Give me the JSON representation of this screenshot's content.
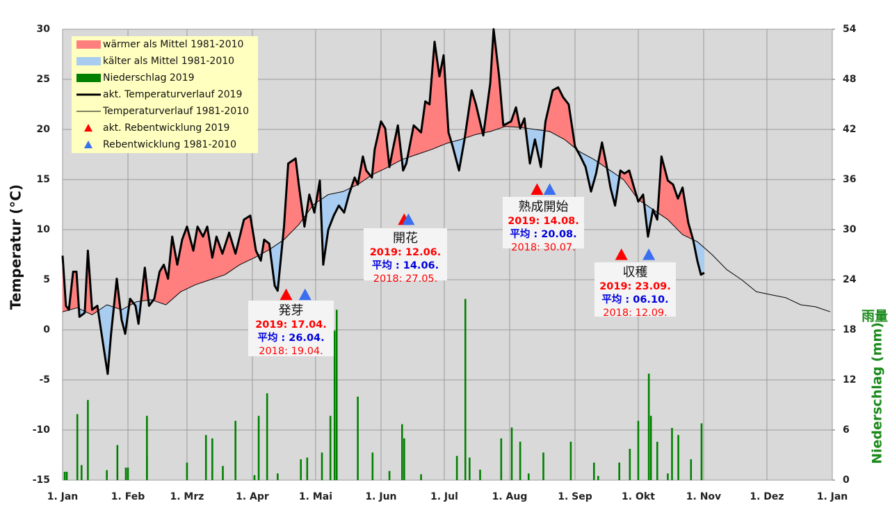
{
  "chart_data": {
    "type": "line",
    "ylabel": "Temperatur (°C)",
    "y2label": "Niederschlag (mm)",
    "y2label_extra": "雨量",
    "xlim": [
      0,
      365
    ],
    "xticks": [
      {
        "value": 0,
        "label": "1. Jan"
      },
      {
        "value": 31,
        "label": "1. Feb"
      },
      {
        "value": 59,
        "label": "1. Mrz"
      },
      {
        "value": 90,
        "label": "1. Apr"
      },
      {
        "value": 120,
        "label": "1. Mai"
      },
      {
        "value": 151,
        "label": "1. Jun"
      },
      {
        "value": 181,
        "label": "1. Jul"
      },
      {
        "value": 212,
        "label": "1. Aug"
      },
      {
        "value": 243,
        "label": "1. Sep"
      },
      {
        "value": 273,
        "label": "1. Okt"
      },
      {
        "value": 304,
        "label": "1. Nov"
      },
      {
        "value": 334,
        "label": "1. Dez"
      },
      {
        "value": 365,
        "label": "1. Jan"
      }
    ],
    "ylim": [
      -15,
      30
    ],
    "yticks": [
      -15,
      -10,
      -5,
      0,
      5,
      10,
      15,
      20,
      25,
      30
    ],
    "y2lim": [
      0,
      54
    ],
    "y2ticks": [
      0,
      6,
      12,
      18,
      24,
      30,
      36,
      42,
      48,
      54
    ],
    "grid": true,
    "fills": [
      {
        "name": "wärmer als Mittel 1981-2010",
        "color": "#ff7f7f"
      },
      {
        "name": "kälter als Mittel 1981-2010",
        "color": "#a9cdf0"
      }
    ],
    "series": [
      {
        "name": "Niederschlag 2019",
        "color": "#008000",
        "axis": "y2",
        "x": [
          1,
          2,
          7,
          9,
          12,
          21,
          26,
          30,
          31,
          40,
          40,
          59,
          68,
          71,
          76,
          82,
          91,
          93,
          97,
          102,
          113,
          116,
          123,
          127,
          129,
          130,
          140,
          147,
          155,
          161,
          162,
          170,
          187,
          191,
          193,
          198,
          208,
          213,
          217,
          221,
          228,
          241,
          252,
          254,
          264,
          269,
          273,
          278,
          279,
          282,
          287,
          289,
          292,
          298,
          303
        ],
        "values": [
          1.0,
          1.0,
          7.9,
          1.8,
          9.6,
          1.2,
          4.2,
          1.5,
          1.5,
          7.7,
          2.9,
          2.1,
          5.4,
          5.0,
          1.7,
          7.1,
          0.6,
          7.7,
          10.4,
          0.8,
          2.5,
          2.7,
          3.3,
          7.7,
          17.9,
          20.4,
          10.0,
          3.3,
          1.1,
          6.7,
          5.0,
          0.7,
          2.9,
          21.7,
          2.7,
          1.25,
          5.0,
          6.3,
          4.6,
          0.8,
          3.3,
          4.6,
          2.1,
          0.5,
          2.1,
          3.75,
          7.1,
          12.75,
          7.7,
          4.6,
          0.8,
          6.25,
          5.4,
          2.5,
          6.8
        ]
      },
      {
        "name": "akt. Temperaturverlauf 2019",
        "color": "#000000",
        "x": [
          0,
          1.6,
          3,
          5,
          6.6,
          8,
          10.5,
          12,
          14,
          16.5,
          18,
          20,
          21.4,
          23,
          25.7,
          28,
          29.7,
          32,
          34.6,
          36,
          39,
          41,
          43.5,
          46,
          48,
          50,
          52,
          54.4,
          56.7,
          59,
          62,
          64,
          66.6,
          68.6,
          71,
          73,
          75.8,
          79,
          82,
          86,
          89,
          91.7,
          94,
          95.6,
          98,
          100.6,
          102,
          105,
          107,
          110.5,
          112,
          114.7,
          117,
          119.4,
          122,
          123.6,
          126,
          128.6,
          131,
          133.5,
          135.8,
          138.5,
          140,
          142.4,
          144,
          146.7,
          148,
          151,
          153,
          155,
          156.6,
          159,
          161.5,
          163,
          166.5,
          170,
          172,
          174,
          176.4,
          178.7,
          180.7,
          183,
          185,
          188,
          190.6,
          194,
          196,
          199.5,
          202.8,
          204.4,
          207,
          209,
          212.7,
          215,
          217,
          219,
          221.6,
          224,
          226.8,
          229,
          232.4,
          235,
          237.4,
          240,
          243,
          245.6,
          248,
          250.6,
          253,
          255.8,
          257.8,
          259.8,
          262,
          264.5,
          266.4,
          268.7,
          271,
          273,
          275.3,
          277.6,
          280,
          282,
          284,
          287,
          289.5,
          291.8,
          294,
          296.7,
          299,
          301,
          302.7,
          304.3
        ],
        "values": [
          7.4,
          2.4,
          2.0,
          5.8,
          5.8,
          1.3,
          1.7,
          7.9,
          2.0,
          2.4,
          0.3,
          -2.5,
          -4.4,
          -0.4,
          5.1,
          1.0,
          -0.4,
          3.1,
          2.4,
          0.6,
          6.2,
          2.4,
          3.1,
          5.8,
          6.5,
          5.1,
          9.3,
          6.5,
          9.0,
          10.3,
          7.9,
          10.3,
          9.3,
          10.3,
          7.2,
          9.3,
          7.6,
          9.7,
          7.6,
          11.0,
          11.4,
          7.9,
          6.9,
          9.0,
          8.6,
          4.4,
          3.9,
          10.3,
          16.6,
          17.1,
          14.5,
          10.3,
          13.5,
          11.7,
          14.9,
          6.5,
          10.0,
          11.4,
          12.4,
          11.7,
          13.5,
          15.2,
          14.5,
          17.3,
          15.9,
          15.2,
          18.0,
          20.8,
          20.1,
          16.25,
          18.0,
          20.4,
          15.9,
          16.6,
          20.4,
          19.7,
          22.8,
          22.5,
          28.75,
          25.3,
          27.4,
          19.7,
          18.3,
          15.9,
          19.0,
          23.9,
          22.5,
          19.4,
          24.6,
          30.0,
          25.3,
          20.4,
          20.8,
          22.2,
          20.1,
          21.1,
          16.6,
          19.0,
          16.25,
          20.8,
          23.9,
          24.2,
          23.2,
          22.5,
          18.3,
          17.3,
          16.25,
          13.8,
          15.6,
          18.7,
          16.6,
          14.2,
          12.4,
          15.9,
          15.6,
          15.9,
          14.2,
          12.8,
          13.5,
          9.3,
          12.0,
          11.0,
          17.3,
          14.9,
          14.5,
          13.1,
          14.2,
          10.7,
          9.0,
          6.9,
          5.5,
          5.7
        ]
      },
      {
        "name": "Temperaturverlauf 1981-2010",
        "color": "#000000",
        "x": [
          0,
          7,
          14,
          21,
          28,
          35,
          42,
          49,
          56,
          63,
          70,
          77,
          84,
          91,
          98,
          105,
          112,
          119,
          126,
          133,
          140,
          147,
          154,
          161,
          168,
          175,
          182,
          189,
          196,
          203,
          210,
          217,
          224,
          231,
          238,
          245,
          252,
          259,
          266,
          273,
          280,
          287,
          294,
          301,
          308,
          315,
          322,
          329,
          336,
          343,
          350,
          357,
          364
        ],
        "values": [
          1.8,
          2.2,
          1.5,
          2.5,
          2.0,
          2.8,
          3.0,
          2.5,
          3.8,
          4.5,
          5.0,
          5.5,
          6.5,
          7.2,
          8.0,
          9.0,
          10.5,
          12.5,
          13.5,
          13.8,
          14.5,
          15.5,
          16.2,
          17.0,
          17.5,
          18.0,
          18.6,
          19.0,
          19.5,
          19.8,
          20.3,
          20.2,
          20.0,
          19.8,
          19.0,
          17.8,
          17.0,
          16.0,
          15.0,
          13.0,
          12.0,
          11.0,
          9.5,
          8.8,
          7.5,
          6.0,
          5.0,
          3.8,
          3.5,
          3.2,
          2.5,
          2.3,
          1.8
        ]
      }
    ],
    "markers": [
      {
        "name": "akt. Rebentwicklung 2019",
        "color": "#ff0000"
      },
      {
        "name": "Rebentwicklung 1981-2010",
        "color": "#3a6ff0"
      }
    ],
    "annotations": [
      {
        "title": "発芽",
        "x": [
          106,
          115
        ],
        "y": 3.5,
        "lines": [
          "2019:  17.04.",
          "平均  : 26.04.",
          "2018:  19.04."
        ]
      },
      {
        "title": "開花",
        "x": [
          162,
          164
        ],
        "y": 11,
        "lines": [
          "2019:  12.06.",
          "平均  : 14.06.",
          "2018:  27.05."
        ]
      },
      {
        "title": "熟成開始",
        "x": [
          225,
          231
        ],
        "y": 14,
        "lines": [
          "2019:  14.08.",
          "平均  : 20.08.",
          "2018:  30.07."
        ]
      },
      {
        "title": "収穫",
        "x": [
          265,
          278
        ],
        "y": 7.5,
        "lines": [
          "2019:  23.09.",
          "平均  : 06.10.",
          "2018:  12.09."
        ]
      }
    ]
  }
}
